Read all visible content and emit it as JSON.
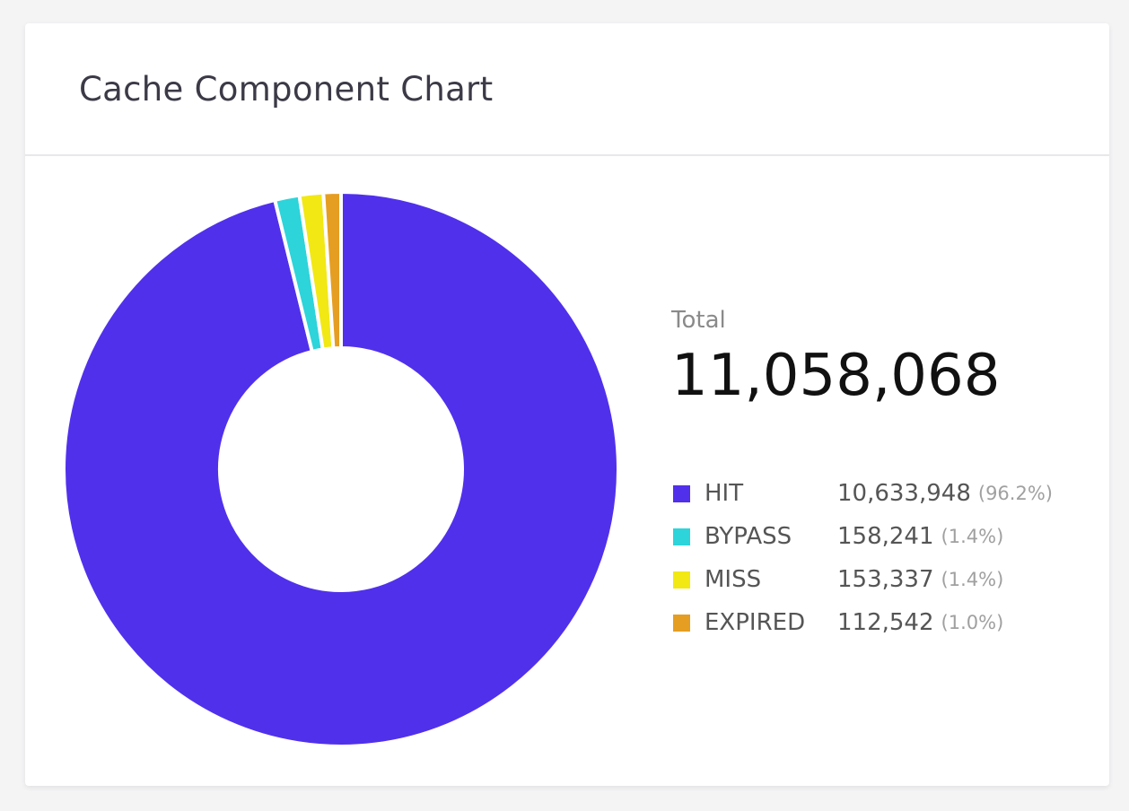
{
  "title": "Cache Component Chart",
  "total": {
    "label": "Total",
    "value": "11,058,068"
  },
  "chart_data": {
    "type": "pie",
    "variant": "donut",
    "title": "Cache Component Chart",
    "legend_position": "right",
    "slices": [
      {
        "label": "HIT",
        "value": 10633948,
        "value_text": "10,633,948",
        "percent_text": "(96.2%)",
        "color": "#5130ec"
      },
      {
        "label": "BYPASS",
        "value": 158241,
        "value_text": "158,241",
        "percent_text": "(1.4%)",
        "color": "#2dd4da"
      },
      {
        "label": "MISS",
        "value": 153337,
        "value_text": "153,337",
        "percent_text": "(1.4%)",
        "color": "#f2e814"
      },
      {
        "label": "EXPIRED",
        "value": 112542,
        "value_text": "112,542",
        "percent_text": "(1.0%)",
        "color": "#e59e22"
      }
    ]
  }
}
